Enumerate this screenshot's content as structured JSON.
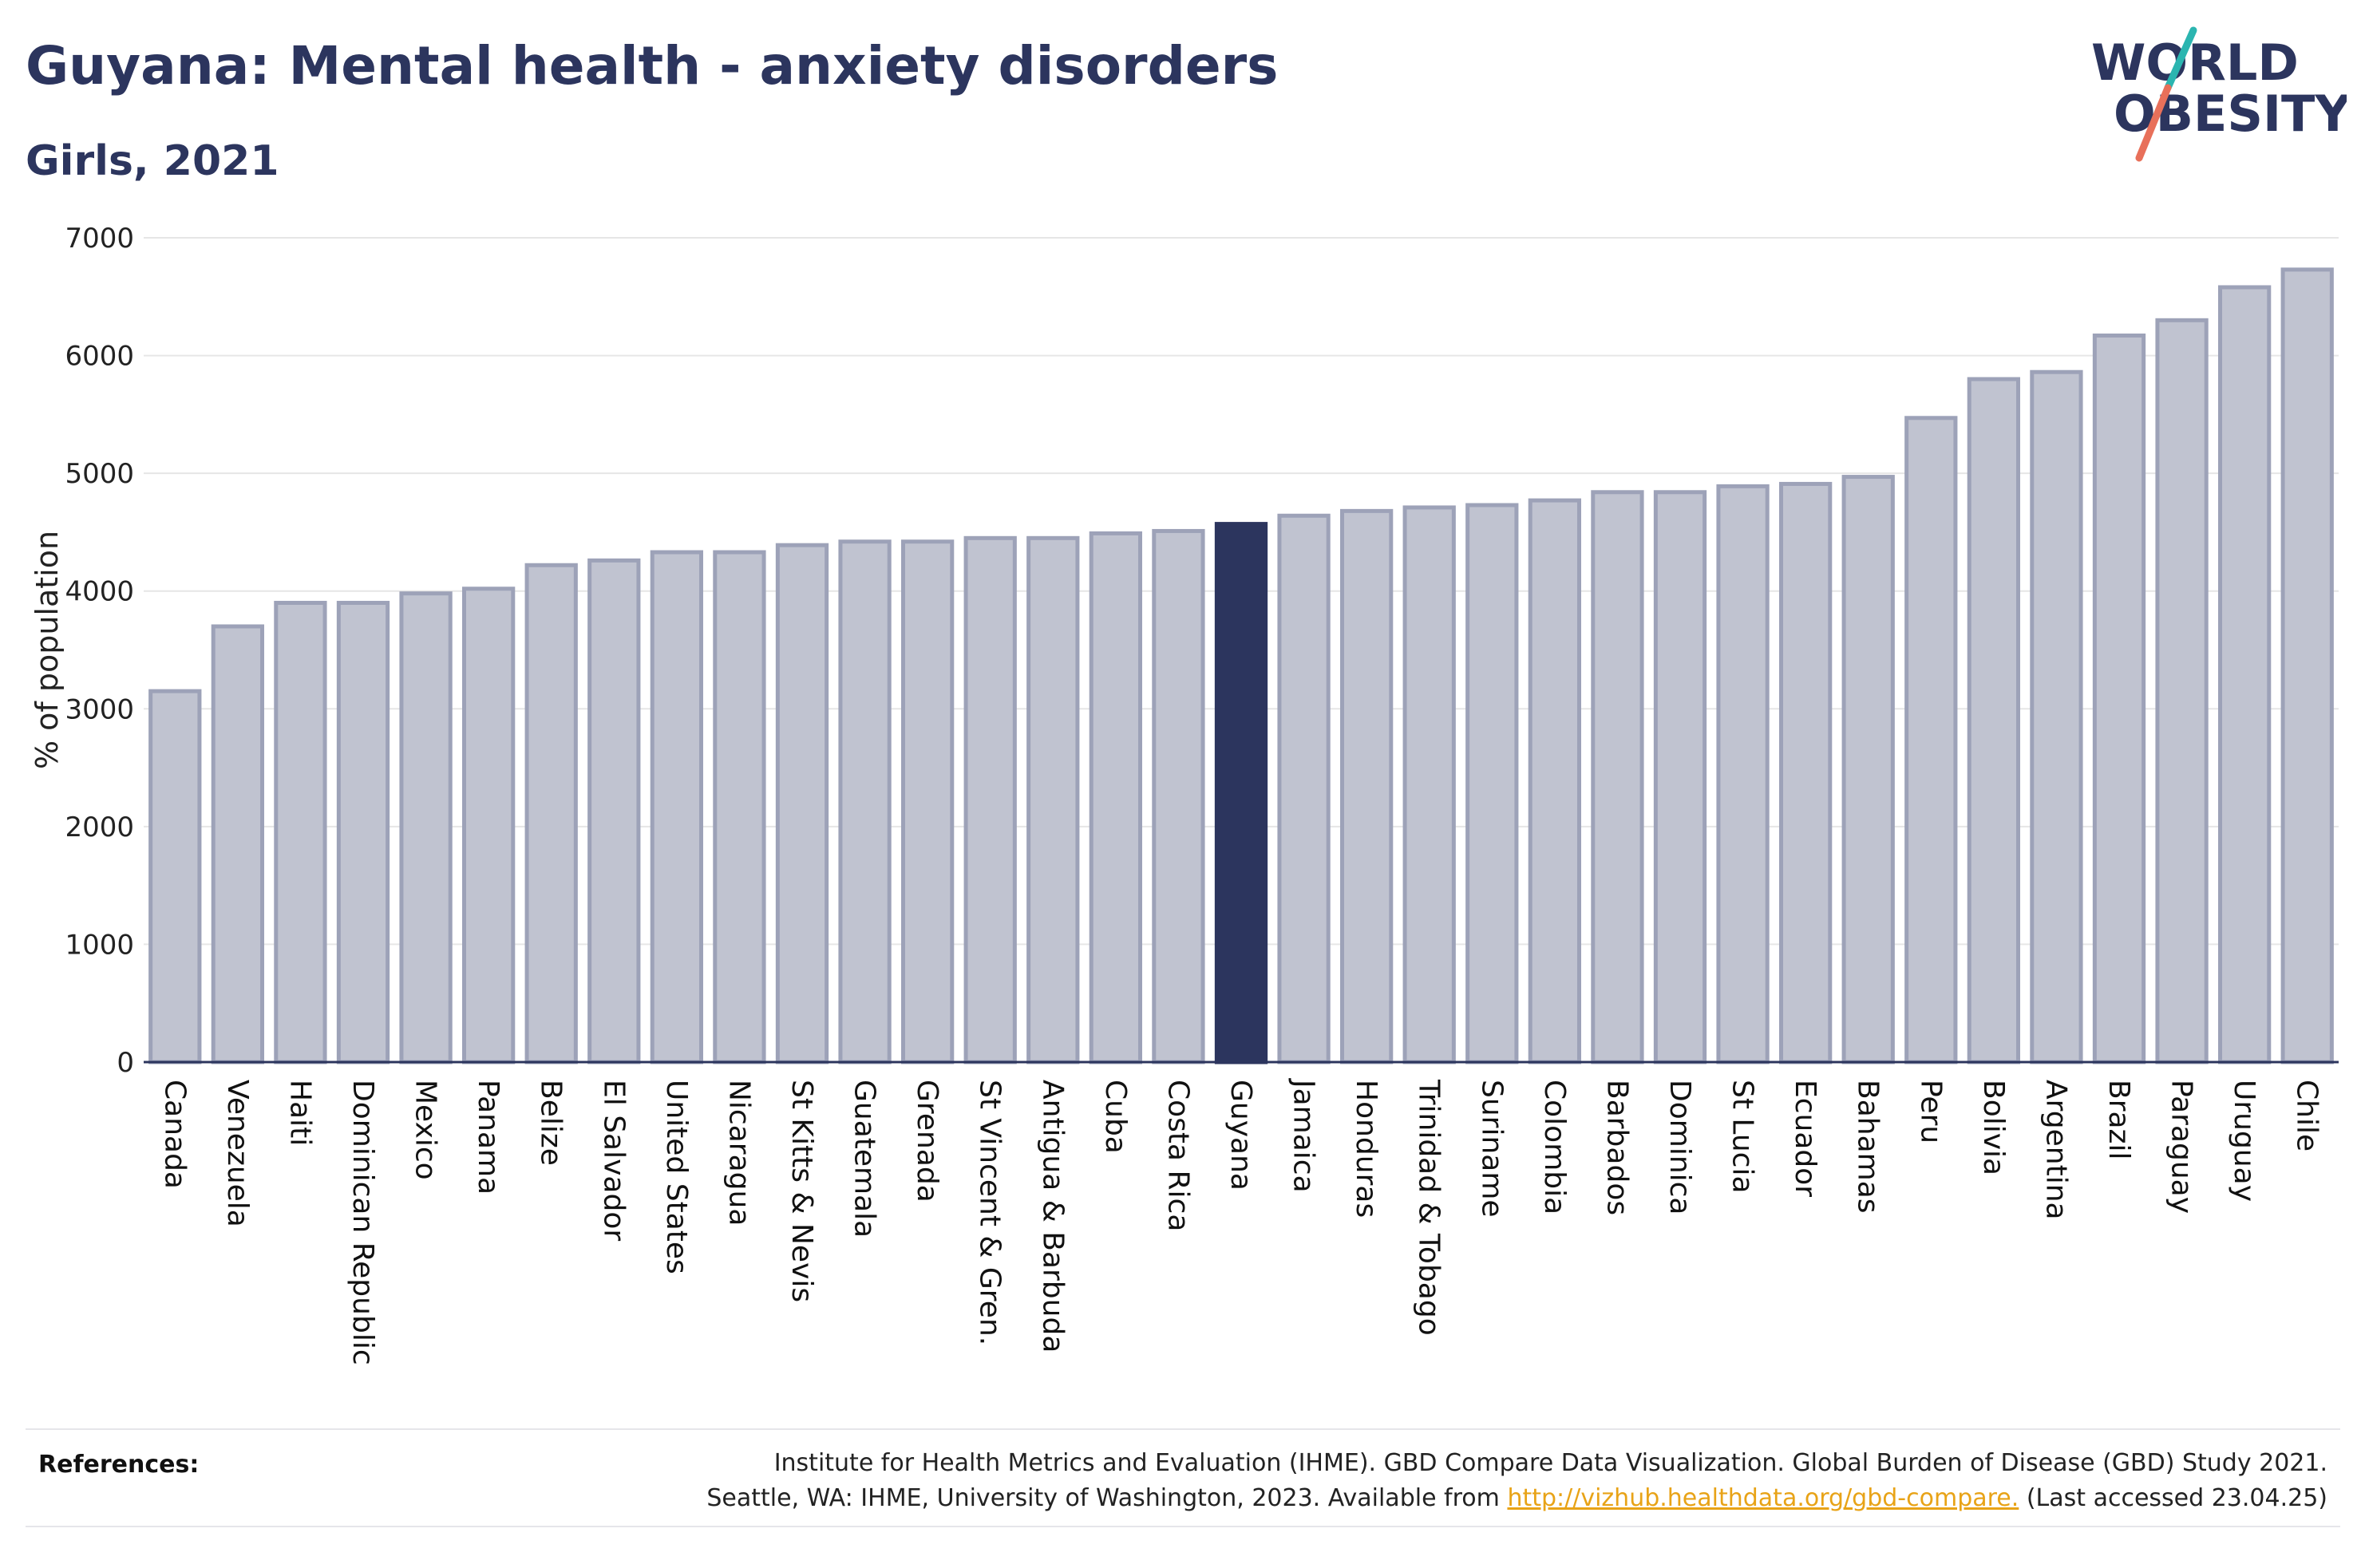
{
  "header": {
    "title": "Guyana: Mental health - anxiety disorders",
    "subtitle": "Girls, 2021"
  },
  "logo": {
    "line1": "WORLD",
    "line2": "OBESITY",
    "accent_colors": [
      "#2bb5b0",
      "#e8705a"
    ]
  },
  "colors": {
    "bar": "#c0c3d0",
    "bar_border": "#9da2b8",
    "highlight": "#2c355e",
    "grid": "#e6e6e6",
    "text": "#2c355e",
    "link": "#e8a317"
  },
  "chart_data": {
    "type": "bar",
    "title": "Guyana: Mental health - anxiety disorders",
    "subtitle": "Girls, 2021",
    "ylabel": "% of population",
    "xlabel": "",
    "ylim": [
      0,
      7000
    ],
    "yticks": [
      0,
      1000,
      2000,
      3000,
      4000,
      5000,
      6000,
      7000
    ],
    "grid": true,
    "highlight": "Guyana",
    "categories": [
      "Canada",
      "Venezuela",
      "Haiti",
      "Dominican Republic",
      "Mexico",
      "Panama",
      "Belize",
      "El Salvador",
      "United States",
      "Nicaragua",
      "St Kitts & Nevis",
      "Guatemala",
      "Grenada",
      "St Vincent & Gren.",
      "Antigua & Barbuda",
      "Cuba",
      "Costa Rica",
      "Guyana",
      "Jamaica",
      "Honduras",
      "Trinidad & Tobago",
      "Suriname",
      "Colombia",
      "Barbados",
      "Dominica",
      "St Lucia",
      "Ecuador",
      "Bahamas",
      "Peru",
      "Bolivia",
      "Argentina",
      "Brazil",
      "Paraguay",
      "Uruguay",
      "Chile"
    ],
    "values": [
      3150,
      3700,
      3900,
      3900,
      3980,
      4020,
      4220,
      4260,
      4330,
      4330,
      4390,
      4420,
      4420,
      4450,
      4450,
      4490,
      4510,
      4570,
      4640,
      4680,
      4710,
      4730,
      4770,
      4840,
      4840,
      4890,
      4910,
      4970,
      5470,
      5800,
      5860,
      6170,
      6300,
      6580,
      6730
    ]
  },
  "references": {
    "label": "References:",
    "line1": "Institute for Health Metrics and Evaluation (IHME). GBD Compare Data Visualization. Global Burden of Disease (GBD) Study 2021.",
    "line2_prefix": "Seattle, WA: IHME, University of Washington, 2023. Available from",
    "link": "http://vizhub.healthdata.org/gbd-compare.",
    "line2_suffix": "(Last accessed 23.04.25)"
  }
}
